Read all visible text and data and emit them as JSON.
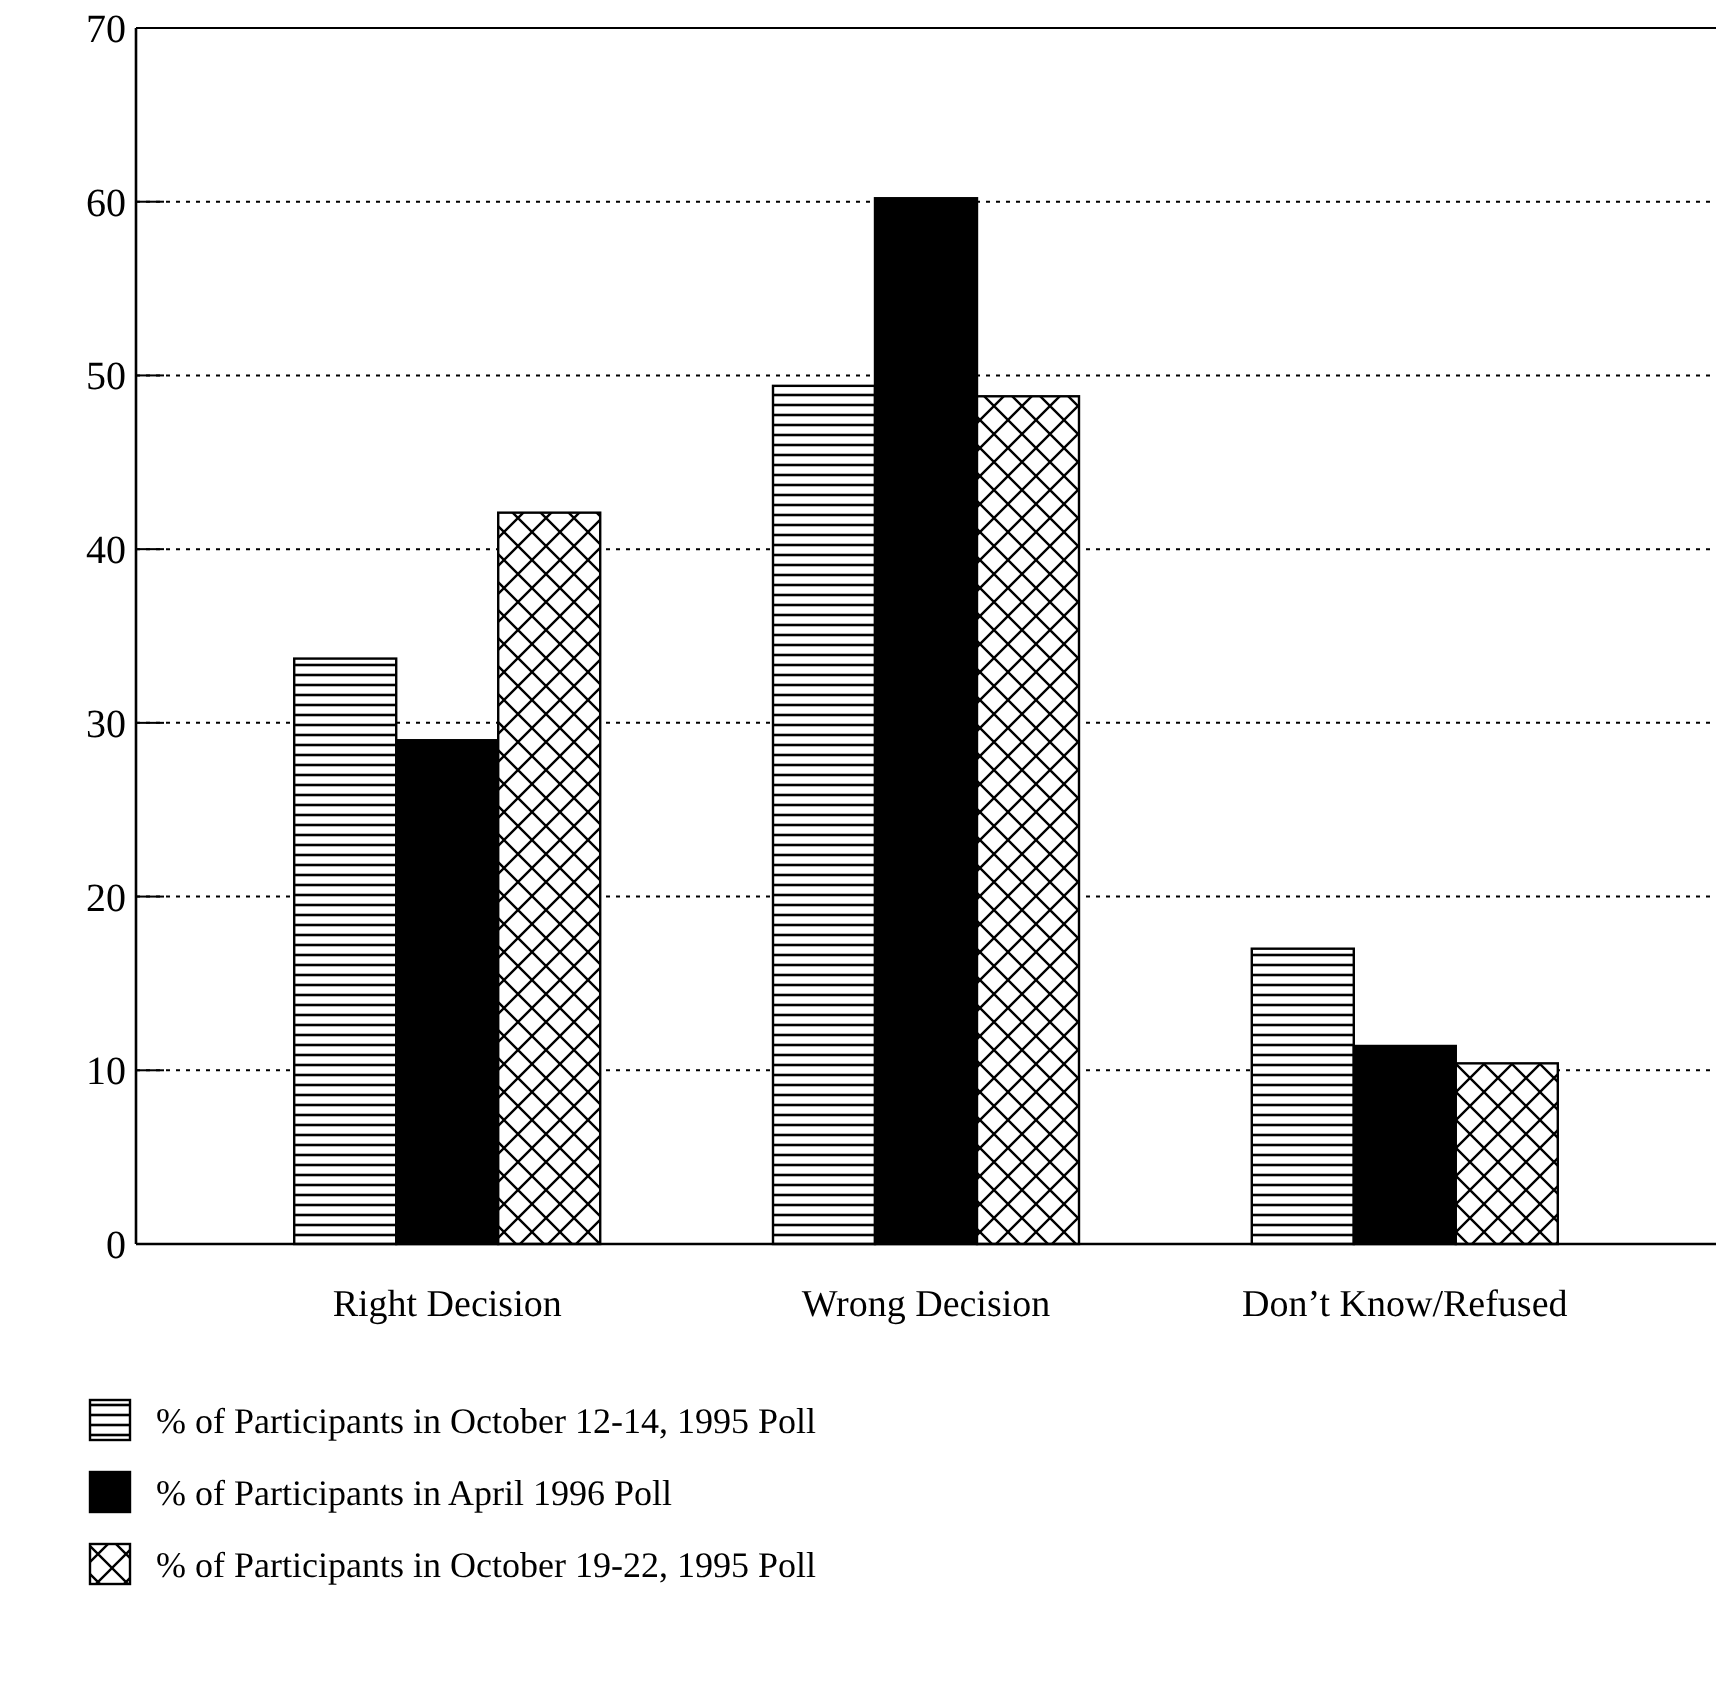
{
  "chart_data": {
    "type": "bar",
    "categories": [
      "Right Decision",
      "Wrong Decision",
      "Don’t Know/Refused"
    ],
    "series": [
      {
        "name": "% of Participants in October 12-14, 1995 Poll",
        "color": "#000000",
        "values": [
          33.7,
          49.4,
          17
        ]
      },
      {
        "name": "% of Participants in April 1996 Poll",
        "color": "#000000",
        "values": [
          29,
          60.2,
          11.4
        ]
      },
      {
        "name": "% of Participants in October 19-22, 1995 Poll",
        "color": "#000000",
        "values": [
          42.1,
          48.8,
          10.4
        ]
      }
    ],
    "ylim": [
      0,
      70
    ],
    "yticks": [
      0,
      10,
      20,
      30,
      40,
      50,
      60,
      70
    ],
    "grid": "y",
    "legend": "bottom left"
  }
}
